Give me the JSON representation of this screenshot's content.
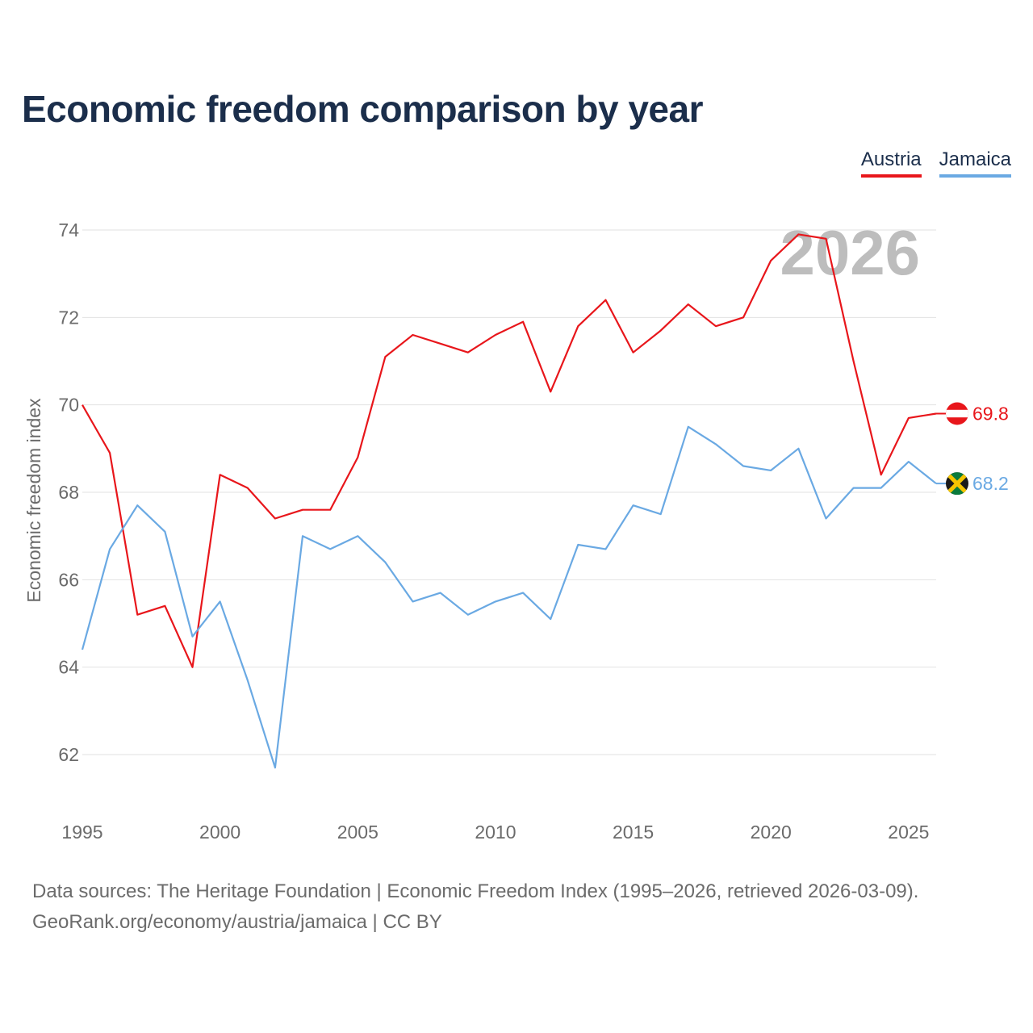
{
  "title": "Economic freedom comparison by year",
  "footer": {
    "line1": "Data sources: The Heritage Foundation | Economic Freedom Index (1995–2026, retrieved 2026-03-09).",
    "line2": "GeoRank.org/economy/austria/jamaica | CC BY"
  },
  "chart_data": {
    "type": "line",
    "title": "Economic freedom comparison by year",
    "xlabel": "",
    "ylabel": "Economic freedom index",
    "year_label": "2026",
    "xlim": [
      1995,
      2026
    ],
    "ylim": [
      61,
      75
    ],
    "x_ticks": [
      1995,
      2000,
      2005,
      2010,
      2015,
      2020,
      2025
    ],
    "y_ticks": [
      62,
      64,
      66,
      68,
      70,
      72,
      74
    ],
    "grid": true,
    "legend_position": "top-right",
    "x": [
      1995,
      1996,
      1997,
      1998,
      1999,
      2000,
      2001,
      2002,
      2003,
      2004,
      2005,
      2006,
      2007,
      2008,
      2009,
      2010,
      2011,
      2012,
      2013,
      2014,
      2015,
      2016,
      2017,
      2018,
      2019,
      2020,
      2021,
      2022,
      2023,
      2024,
      2025,
      2026
    ],
    "series": [
      {
        "name": "Austria",
        "color": "#e8161b",
        "end_label": "69.8",
        "flag": "austria-flag-icon",
        "values": [
          70.0,
          68.9,
          65.2,
          65.4,
          64.0,
          68.4,
          68.1,
          67.4,
          67.6,
          67.6,
          68.8,
          71.1,
          71.6,
          71.4,
          71.2,
          71.6,
          71.9,
          70.3,
          71.8,
          72.4,
          71.2,
          71.7,
          72.3,
          71.8,
          72.0,
          73.3,
          73.9,
          73.8,
          71.0,
          68.4,
          69.7,
          69.8
        ]
      },
      {
        "name": "Jamaica",
        "color": "#6aa9e3",
        "end_label": "68.2",
        "flag": "jamaica-flag-icon",
        "values": [
          64.4,
          66.7,
          67.7,
          67.1,
          64.7,
          65.5,
          63.7,
          61.7,
          67.0,
          66.7,
          67.0,
          66.4,
          65.5,
          65.7,
          65.2,
          65.5,
          65.7,
          65.1,
          66.8,
          66.7,
          67.7,
          67.5,
          69.5,
          69.1,
          68.6,
          68.5,
          69.0,
          67.4,
          68.1,
          68.1,
          68.7,
          68.2
        ]
      }
    ]
  }
}
